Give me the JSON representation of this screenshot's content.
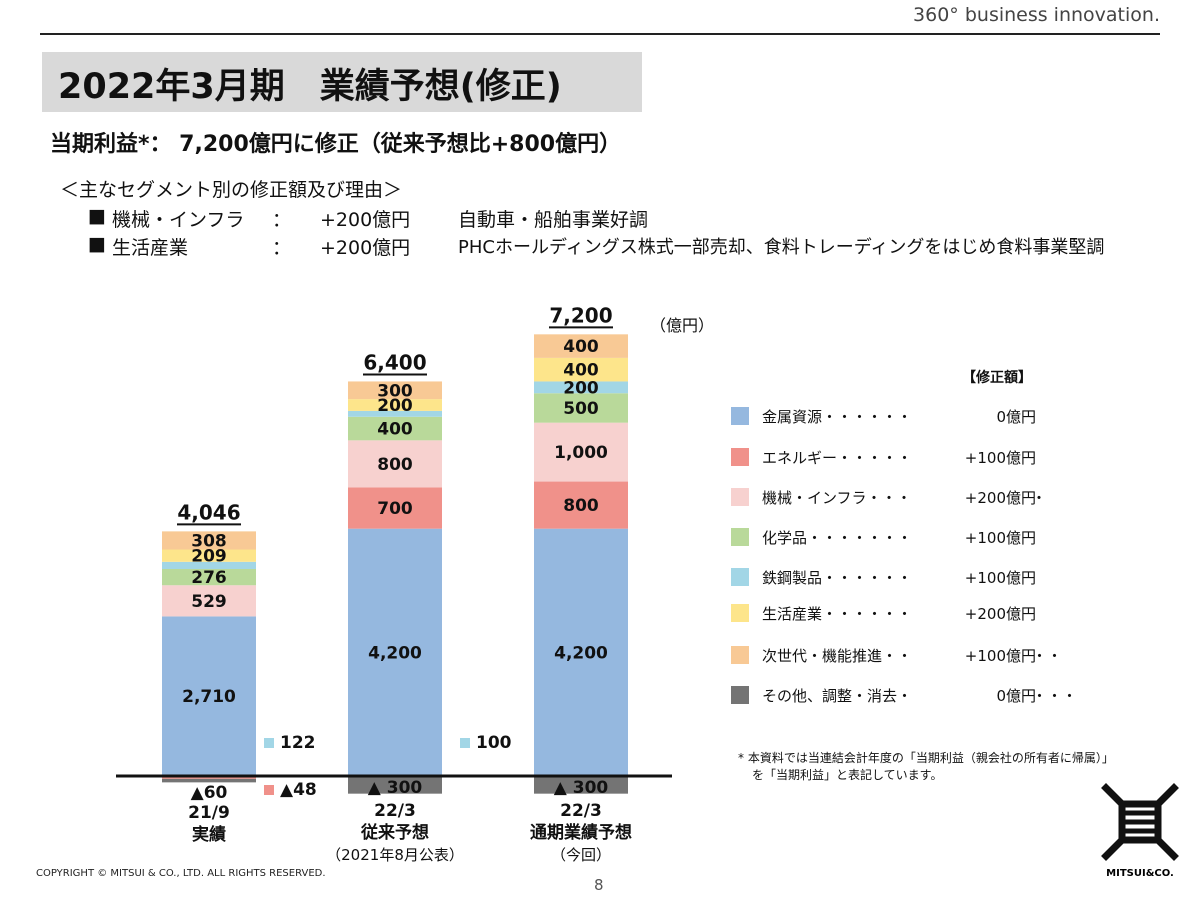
{
  "header": {
    "tagline": "360° business innovation."
  },
  "title": "2022年3月期　業績予想(修正)",
  "subtitle": "当期利益*： 7,200億円に修正（従来予想比+800億円）",
  "segments_header": "＜主なセグメント別の修正額及び理由＞",
  "reasons": [
    {
      "bullet": "■",
      "segment": "機械・インフラ",
      "sep": "：",
      "amount": "+200億円",
      "reason": "自動車・船舶事業好調"
    },
    {
      "bullet": "■",
      "segment": "生活産業",
      "sep": "：",
      "amount": "+200億円",
      "reason": "PHCホールディングス株式一部売却、食料トレーディングをはじめ食料事業堅調"
    }
  ],
  "unit_label": "（億円）",
  "legend_header": "【修正額】",
  "colors": {
    "metal": "#95b8df",
    "energy": "#f0918a",
    "machinery": "#f7d1cf",
    "chemical": "#b9d99a",
    "iron": "#a2d6e6",
    "lifestyle": "#fde58b",
    "nextgen": "#f8c995",
    "other": "#747474"
  },
  "chart_data": {
    "type": "stacked-bar",
    "ylim": [
      -300,
      7200
    ],
    "series_order": [
      "metal",
      "energy",
      "machinery",
      "chemical",
      "iron",
      "lifestyle",
      "nextgen",
      "other"
    ],
    "series": [
      {
        "key": "metal",
        "name": "金属資源",
        "revision": "0億円"
      },
      {
        "key": "energy",
        "name": "エネルギー",
        "revision": "+100億円"
      },
      {
        "key": "machinery",
        "name": "機械・インフラ",
        "revision": "+200億円"
      },
      {
        "key": "chemical",
        "name": "化学品",
        "revision": "+100億円"
      },
      {
        "key": "iron",
        "name": "鉄鋼製品",
        "revision": "+100億円"
      },
      {
        "key": "lifestyle",
        "name": "生活産業",
        "revision": "+200億円"
      },
      {
        "key": "nextgen",
        "name": "次世代・機能推進",
        "revision": "+100億円"
      },
      {
        "key": "other",
        "name": "その他、調整・消去",
        "revision": "0億円"
      }
    ],
    "bars": [
      {
        "label": [
          "21/9",
          "実績"
        ],
        "total": 4046,
        "total_label": "4,046",
        "segments": {
          "metal": 2710,
          "energy": -48,
          "machinery": 529,
          "chemical": 276,
          "iron": 122,
          "lifestyle": 209,
          "nextgen": 308,
          "other": -60
        },
        "segment_labels": {
          "metal": "2,710",
          "machinery": "529",
          "chemical": "276",
          "lifestyle": "209",
          "nextgen": "308"
        },
        "below_label": "▲60",
        "side_labels": [
          {
            "key": "iron",
            "text": "122"
          },
          {
            "key": "energy",
            "text": "▲48"
          }
        ]
      },
      {
        "label": [
          "22/3",
          "従来予想",
          "（2021年8月公表）"
        ],
        "total": 6400,
        "total_label": "6,400",
        "segments": {
          "metal": 4200,
          "energy": 700,
          "machinery": 800,
          "chemical": 400,
          "iron": 100,
          "lifestyle": 200,
          "nextgen": 300,
          "other": -300
        },
        "segment_labels": {
          "metal": "4,200",
          "energy": "700",
          "machinery": "800",
          "chemical": "400",
          "lifestyle": "200",
          "nextgen": "300",
          "other": "▲ 300"
        },
        "side_labels": [
          {
            "key": "iron",
            "text": "100"
          }
        ]
      },
      {
        "label": [
          "22/3",
          "通期業績予想",
          "（今回）"
        ],
        "total": 7200,
        "total_label": "7,200",
        "segments": {
          "metal": 4200,
          "energy": 800,
          "machinery": 1000,
          "chemical": 500,
          "iron": 200,
          "lifestyle": 400,
          "nextgen": 400,
          "other": -300
        },
        "segment_labels": {
          "metal": "4,200",
          "energy": "800",
          "machinery": "1,000",
          "chemical": "500",
          "iron": "200",
          "lifestyle": "400",
          "nextgen": "400",
          "other": "▲ 300"
        }
      }
    ]
  },
  "footnote": [
    "* 本資料では当連結会計年度の「当期利益（親会社の所有者に帰属）」",
    "を「当期利益」と表記しています。"
  ],
  "logo_text": "MITSUI&CO.",
  "copyright": "COPYRIGHT © MITSUI & CO., LTD. ALL RIGHTS RESERVED.",
  "page_number": "8"
}
